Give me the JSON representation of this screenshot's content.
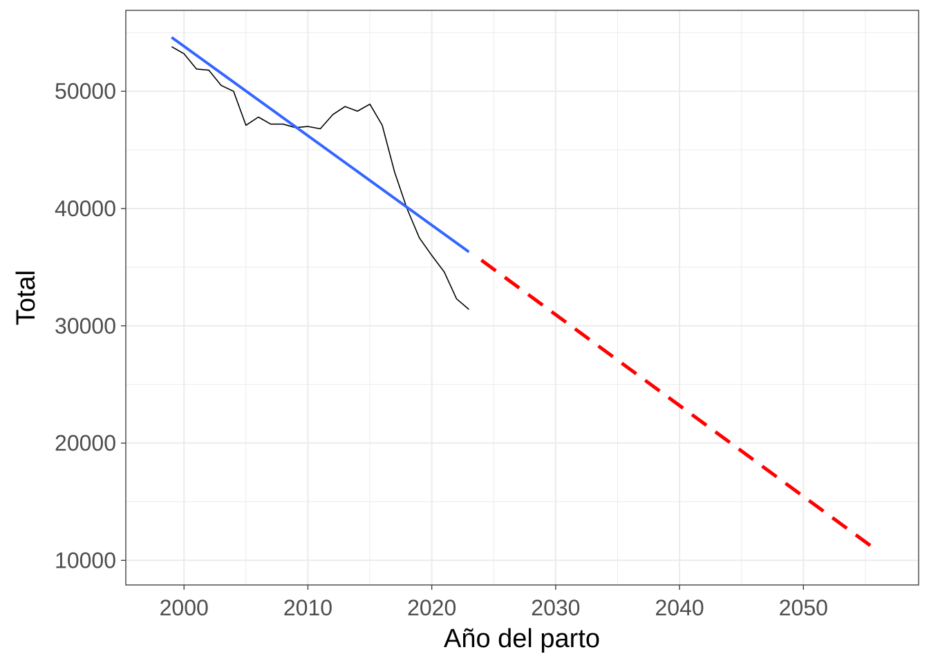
{
  "chart_data": {
    "type": "line",
    "title": "",
    "xlabel": "Año del parto",
    "ylabel": "Total",
    "xlim": [
      1995.3,
      2059.3
    ],
    "ylim": [
      7900,
      56900
    ],
    "grid": true,
    "legend": "none",
    "x_ticks": [
      2000,
      2010,
      2020,
      2030,
      2040,
      2050
    ],
    "x_tick_labels": [
      "2000",
      "2010",
      "2020",
      "2030",
      "2040",
      "2050"
    ],
    "y_ticks": [
      10000,
      20000,
      30000,
      40000,
      50000
    ],
    "y_tick_labels": [
      "10000",
      "20000",
      "30000",
      "40000",
      "50000"
    ],
    "series": [
      {
        "style": "solid",
        "color": "#000000",
        "x": [
          1999,
          2000,
          2001,
          2002,
          2003,
          2004,
          2005,
          2006,
          2007,
          2008,
          2009,
          2010,
          2011,
          2012,
          2013,
          2014,
          2015,
          2016,
          2017,
          2018,
          2019,
          2020,
          2021,
          2022,
          2023
        ],
        "y": [
          53800,
          53200,
          51900,
          51800,
          50500,
          50000,
          47100,
          47800,
          47200,
          47200,
          46900,
          47000,
          46800,
          48000,
          48700,
          48300,
          48900,
          47100,
          43100,
          40000,
          37500,
          36000,
          34600,
          32300,
          31400
        ]
      },
      {
        "style": "solid",
        "color": "#3366ff",
        "x": [
          1999,
          2023
        ],
        "y": [
          54600,
          36300
        ]
      },
      {
        "style": "dashed",
        "color": "#ff0000",
        "x": [
          2024,
          2056
        ],
        "y": [
          35600,
          10800
        ]
      }
    ]
  }
}
